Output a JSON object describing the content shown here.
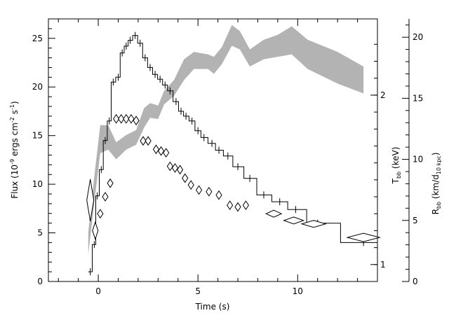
{
  "chart_data": {
    "type": "line",
    "title": "",
    "xlabel": "Time (s)",
    "ylabel_left": {
      "main": "Flux (10",
      "exp1": "-9",
      "mid": " ergs cm",
      "exp2": "-2",
      "mid2": " s",
      "exp3": "-1",
      "end": ")"
    },
    "ylabel_right_T": {
      "main": "T",
      "sub": "bb",
      "end": " (keV)"
    },
    "ylabel_right_R": {
      "main": "R",
      "sub": "bb",
      "mid": " (km/d",
      "sub2": "10 kpc",
      "end": ")"
    },
    "xlim": [
      -2.5,
      14
    ],
    "flux_ylim": [
      0,
      27
    ],
    "T_ylim": [
      0.9,
      2.45
    ],
    "R_ylim": [
      0,
      21.5
    ],
    "x_ticks": [
      "0",
      "5",
      "10"
    ],
    "flux_ticks": [
      "0",
      "5",
      "10",
      "15",
      "20",
      "25"
    ],
    "T_ticks": [
      "1",
      "2"
    ],
    "R_ticks": [
      "0",
      "5",
      "10",
      "15",
      "20"
    ],
    "flux_series": [
      [
        -0.4,
        1.0
      ],
      [
        -0.2,
        3.8
      ],
      [
        -0.05,
        8.8
      ],
      [
        0.15,
        11.5
      ],
      [
        0.35,
        14.5
      ],
      [
        0.55,
        16.5
      ],
      [
        0.75,
        20.5
      ],
      [
        1.0,
        21.0
      ],
      [
        1.2,
        23.5
      ],
      [
        1.4,
        24.2
      ],
      [
        1.6,
        24.8
      ],
      [
        1.85,
        25.3
      ],
      [
        2.1,
        24.5
      ],
      [
        2.35,
        23.0
      ],
      [
        2.6,
        22.0
      ],
      [
        2.85,
        21.3
      ],
      [
        3.1,
        20.8
      ],
      [
        3.35,
        20.2
      ],
      [
        3.6,
        19.6
      ],
      [
        3.9,
        18.5
      ],
      [
        4.15,
        17.5
      ],
      [
        4.4,
        17.0
      ],
      [
        4.7,
        16.5
      ],
      [
        5.0,
        15.5
      ],
      [
        5.3,
        14.8
      ],
      [
        5.7,
        14.2
      ],
      [
        6.05,
        13.5
      ],
      [
        6.5,
        12.9
      ],
      [
        7.0,
        11.8
      ],
      [
        7.6,
        10.6
      ],
      [
        8.3,
        8.9
      ],
      [
        9.1,
        8.2
      ],
      [
        9.9,
        7.4
      ],
      [
        11.0,
        6.0
      ],
      [
        13.3,
        4.0
      ]
    ],
    "T_diamonds": [
      [
        -0.4,
        1.38
      ],
      [
        -0.15,
        1.2
      ],
      [
        0.1,
        1.3
      ],
      [
        0.35,
        1.4
      ],
      [
        0.6,
        1.48
      ],
      [
        0.9,
        1.86
      ],
      [
        1.15,
        1.86
      ],
      [
        1.4,
        1.86
      ],
      [
        1.65,
        1.86
      ],
      [
        1.9,
        1.85
      ],
      [
        2.25,
        1.73
      ],
      [
        2.5,
        1.73
      ],
      [
        2.9,
        1.68
      ],
      [
        3.15,
        1.67
      ],
      [
        3.4,
        1.66
      ],
      [
        3.6,
        1.58
      ],
      [
        3.85,
        1.57
      ],
      [
        4.1,
        1.56
      ],
      [
        4.35,
        1.51
      ],
      [
        4.65,
        1.47
      ],
      [
        5.05,
        1.44
      ],
      [
        5.55,
        1.43
      ],
      [
        6.05,
        1.41
      ],
      [
        6.6,
        1.35
      ],
      [
        7.0,
        1.34
      ],
      [
        7.4,
        1.35
      ],
      [
        8.8,
        1.3
      ],
      [
        9.8,
        1.26
      ],
      [
        10.8,
        1.24
      ],
      [
        13.3,
        1.16
      ]
    ],
    "R_band": [
      {
        "x": -0.5,
        "lo": 2.2,
        "hi": 4.0
      },
      {
        "x": -0.2,
        "lo": 6.5,
        "hi": 8.6
      },
      {
        "x": 0.1,
        "lo": 10.5,
        "hi": 12.8
      },
      {
        "x": 0.5,
        "lo": 10.8,
        "hi": 12.8
      },
      {
        "x": 0.9,
        "lo": 10.0,
        "hi": 11.4
      },
      {
        "x": 1.4,
        "lo": 10.8,
        "hi": 12.0
      },
      {
        "x": 1.9,
        "lo": 11.2,
        "hi": 12.4
      },
      {
        "x": 2.3,
        "lo": 12.6,
        "hi": 14.2
      },
      {
        "x": 2.6,
        "lo": 13.4,
        "hi": 14.6
      },
      {
        "x": 3.0,
        "lo": 13.3,
        "hi": 14.4
      },
      {
        "x": 3.3,
        "lo": 14.5,
        "hi": 15.6
      },
      {
        "x": 3.8,
        "lo": 15.2,
        "hi": 16.5
      },
      {
        "x": 4.3,
        "lo": 16.5,
        "hi": 18.2
      },
      {
        "x": 4.8,
        "lo": 17.4,
        "hi": 18.8
      },
      {
        "x": 5.5,
        "lo": 17.4,
        "hi": 18.6
      },
      {
        "x": 5.8,
        "lo": 17.0,
        "hi": 18.4
      },
      {
        "x": 6.2,
        "lo": 17.8,
        "hi": 19.2
      },
      {
        "x": 6.7,
        "lo": 19.3,
        "hi": 21.0
      },
      {
        "x": 7.1,
        "lo": 19.0,
        "hi": 20.5
      },
      {
        "x": 7.6,
        "lo": 17.6,
        "hi": 19.0
      },
      {
        "x": 8.3,
        "lo": 18.2,
        "hi": 19.8
      },
      {
        "x": 9.0,
        "lo": 18.4,
        "hi": 20.2
      },
      {
        "x": 9.7,
        "lo": 18.6,
        "hi": 20.9
      },
      {
        "x": 10.5,
        "lo": 17.4,
        "hi": 19.8
      },
      {
        "x": 12.0,
        "lo": 16.2,
        "hi": 18.8
      },
      {
        "x": 13.3,
        "lo": 15.4,
        "hi": 17.6
      }
    ]
  }
}
